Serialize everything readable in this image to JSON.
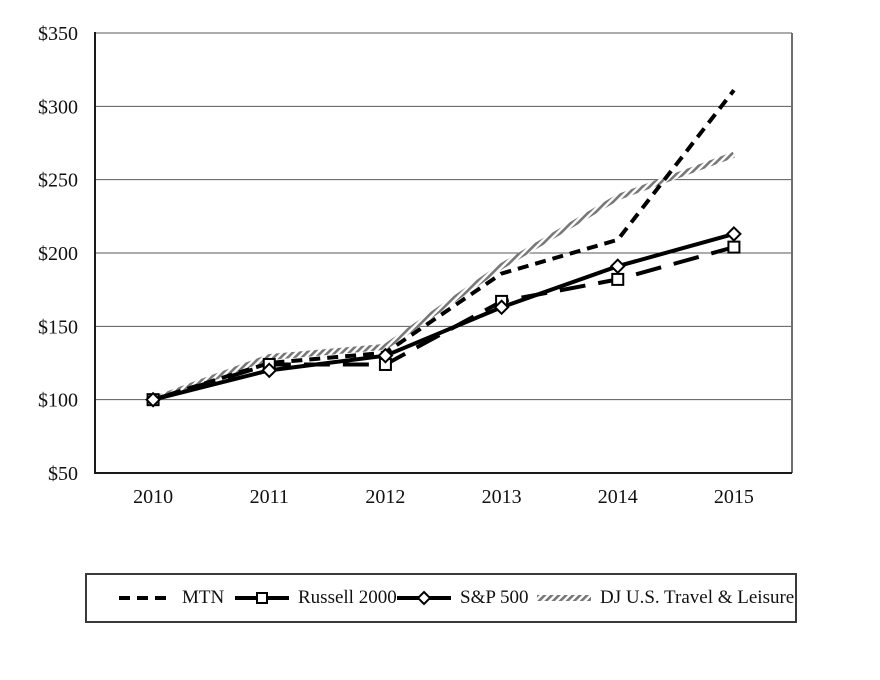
{
  "page": {
    "background": "#ffffff",
    "description": "Cumulative total return stock performance line graph"
  },
  "chart_data": {
    "type": "line",
    "title": "",
    "xlabel": "",
    "ylabel": "",
    "x_labels": [
      "2010",
      "2011",
      "2012",
      "2013",
      "2014",
      "2015"
    ],
    "ylim": [
      50,
      350
    ],
    "y_ticks": [
      {
        "label": "$50",
        "value": 50
      },
      {
        "label": "$100",
        "value": 100
      },
      {
        "label": "$150",
        "value": 150
      },
      {
        "label": "$200",
        "value": 200
      },
      {
        "label": "$250",
        "value": 250
      },
      {
        "label": "$300",
        "value": 300
      },
      {
        "label": "$350",
        "value": 350
      }
    ],
    "grid": "horizontal",
    "legend_position": "bottom-box",
    "colors": {
      "line_black": "#000000",
      "hatch_gray": "#777777",
      "gridline": "#595959",
      "axis": "#1a1a1a",
      "plot_right_border": "#6e6e6e"
    },
    "series": [
      {
        "name": "MTN",
        "values": [
          100,
          125,
          132,
          186,
          209,
          311
        ],
        "line_style": "dashed",
        "marker": "none",
        "color": "#000000"
      },
      {
        "name": "Russell 2000",
        "values": [
          100,
          124,
          124,
          167,
          182,
          204
        ],
        "line_style": "long-dash",
        "marker": "square",
        "color": "#000000"
      },
      {
        "name": "S&P 500",
        "values": [
          100,
          120,
          130,
          163,
          191,
          213
        ],
        "line_style": "solid",
        "marker": "diamond",
        "color": "#000000"
      },
      {
        "name": "DJ U.S. Travel & Leisure",
        "values": [
          100,
          129,
          136,
          191,
          238,
          267
        ],
        "line_style": "hatched",
        "marker": "none",
        "color": "#777777"
      }
    ]
  }
}
